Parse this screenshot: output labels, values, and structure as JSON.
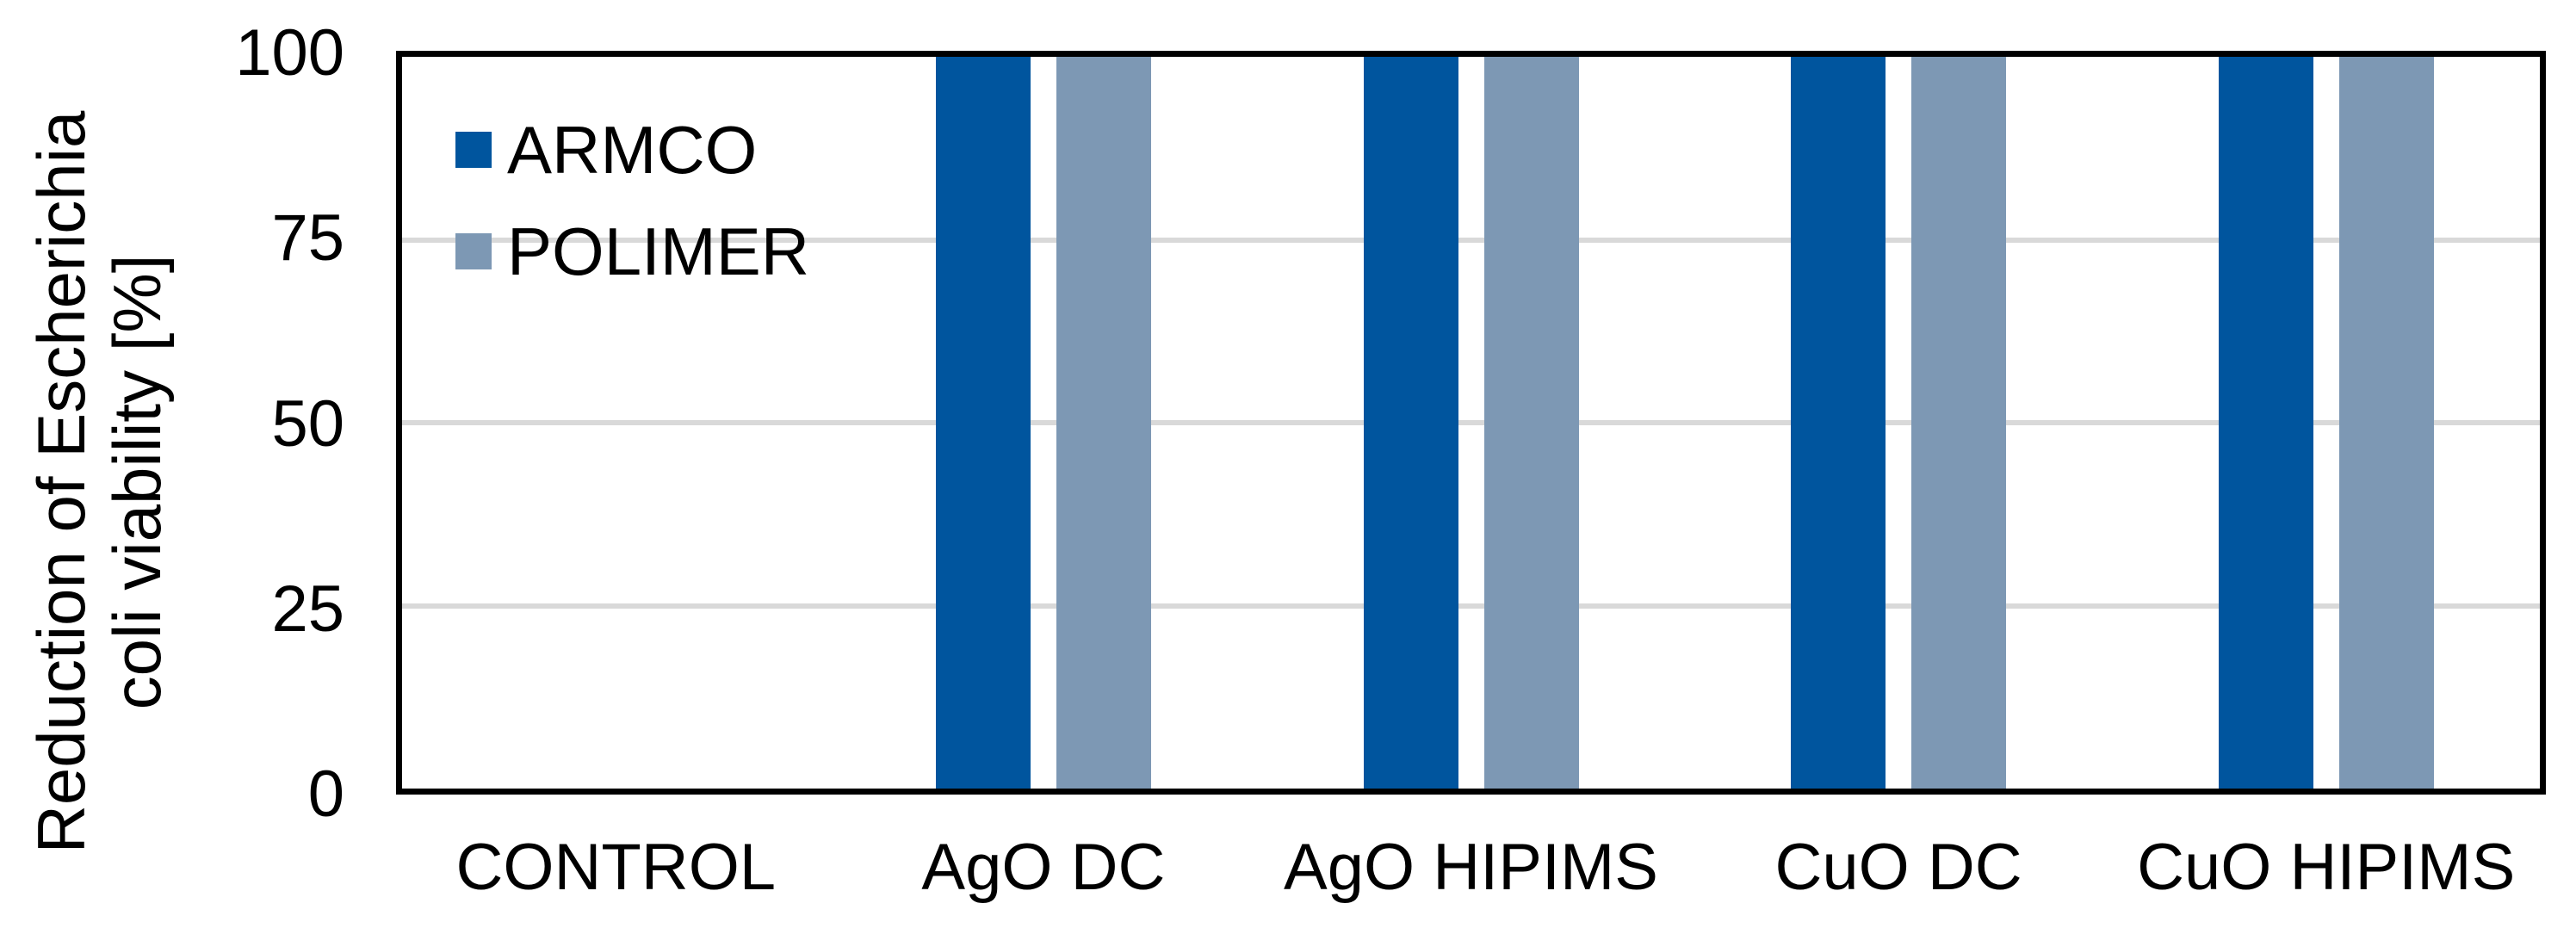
{
  "chart_data": {
    "type": "bar",
    "categories": [
      "CONTROL",
      "AgO DC",
      "AgO HIPIMS",
      "CuO DC",
      "CuO HIPIMS"
    ],
    "series": [
      {
        "name": "ARMCO",
        "color": "#00559E",
        "values": [
          0,
          100,
          100,
          100,
          100
        ]
      },
      {
        "name": "POLIMER",
        "color": "#7D98B4",
        "values": [
          0,
          100,
          100,
          100,
          100
        ]
      }
    ],
    "ylabel_line1": "Reduction of Escherichia",
    "ylabel_line2": "coli viability [%]",
    "yticks": [
      0,
      25,
      50,
      75,
      100
    ],
    "ylim": [
      0,
      100
    ],
    "grid": "horizontal",
    "gridline_color": "#D9D9D9",
    "axis_color": "#000000",
    "text_color": "#000000",
    "background_color": "#FFFFFF",
    "legend_position": "top-left-inside"
  }
}
